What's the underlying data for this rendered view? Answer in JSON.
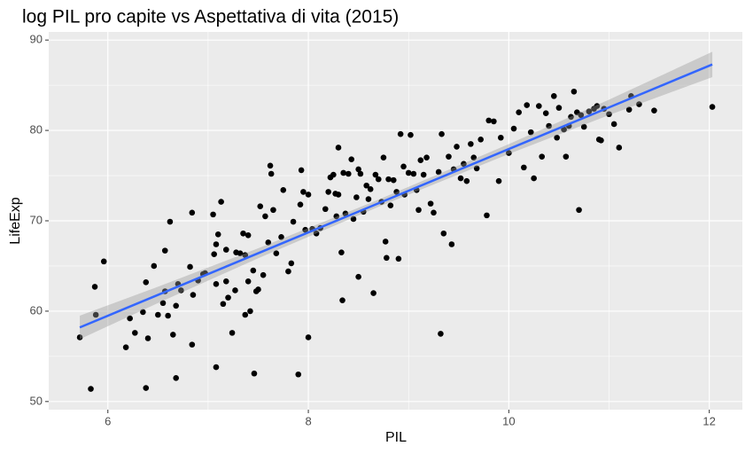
{
  "chart_data": {
    "type": "scatter",
    "title": "log PIL pro capite vs Aspettativa di vita (2015)",
    "x_label": "PIL",
    "y_label": "LifeExp",
    "xlim": [
      5.41,
      12.33
    ],
    "ylim": [
      49.1,
      90.9
    ],
    "xticks": [
      6,
      8,
      10,
      12
    ],
    "yticks": [
      50,
      60,
      70,
      80,
      90
    ],
    "grid": true,
    "points": {
      "color": "#000000",
      "x": [
        5.72,
        5.83,
        5.87,
        5.88,
        5.96,
        6.18,
        6.22,
        6.27,
        6.35,
        6.38,
        6.38,
        6.4,
        6.46,
        6.5,
        6.55,
        6.57,
        6.57,
        6.6,
        6.62,
        6.65,
        6.68,
        6.68,
        6.7,
        6.73,
        6.82,
        6.84,
        6.84,
        6.85,
        6.9,
        6.95,
        6.97,
        7.05,
        7.06,
        7.08,
        7.08,
        7.08,
        7.1,
        7.13,
        7.15,
        7.18,
        7.18,
        7.2,
        7.24,
        7.27,
        7.28,
        7.32,
        7.35,
        7.37,
        7.37,
        7.4,
        7.4,
        7.42,
        7.45,
        7.46,
        7.48,
        7.5,
        7.52,
        7.55,
        7.57,
        7.6,
        7.62,
        7.63,
        7.65,
        7.68,
        7.73,
        7.75,
        7.8,
        7.83,
        7.85,
        7.9,
        7.92,
        7.93,
        7.95,
        7.97,
        8.0,
        8.0,
        8.04,
        8.08,
        8.12,
        8.17,
        8.2,
        8.22,
        8.25,
        8.27,
        8.28,
        8.3,
        8.3,
        8.33,
        8.34,
        8.35,
        8.37,
        8.4,
        8.43,
        8.45,
        8.48,
        8.5,
        8.5,
        8.52,
        8.55,
        8.58,
        8.6,
        8.62,
        8.65,
        8.67,
        8.7,
        8.73,
        8.75,
        8.77,
        8.78,
        8.8,
        8.82,
        8.85,
        8.88,
        8.9,
        8.92,
        8.95,
        8.96,
        9.0,
        9.02,
        9.05,
        9.08,
        9.1,
        9.12,
        9.15,
        9.18,
        9.22,
        9.25,
        9.3,
        9.32,
        9.33,
        9.35,
        9.4,
        9.43,
        9.45,
        9.48,
        9.52,
        9.55,
        9.58,
        9.62,
        9.65,
        9.68,
        9.72,
        9.78,
        9.8,
        9.85,
        9.9,
        9.92,
        10.0,
        10.05,
        10.1,
        10.15,
        10.18,
        10.22,
        10.25,
        10.3,
        10.33,
        10.37,
        10.4,
        10.45,
        10.48,
        10.5,
        10.55,
        10.57,
        10.6,
        10.62,
        10.65,
        10.68,
        10.7,
        10.72,
        10.75,
        10.8,
        10.85,
        10.88,
        10.9,
        10.92,
        10.95,
        11.0,
        11.05,
        11.1,
        11.2,
        11.22,
        11.3,
        11.45,
        12.03
      ],
      "y": [
        57.1,
        51.4,
        62.7,
        59.6,
        65.5,
        56.0,
        59.2,
        57.6,
        59.9,
        51.5,
        63.2,
        57.0,
        65.0,
        59.6,
        60.9,
        66.7,
        62.2,
        59.5,
        69.9,
        57.4,
        52.6,
        60.6,
        63.0,
        62.3,
        64.9,
        70.9,
        56.3,
        61.8,
        63.4,
        64.1,
        64.2,
        70.7,
        66.3,
        63.0,
        53.8,
        67.4,
        68.5,
        72.1,
        60.8,
        63.3,
        66.8,
        61.5,
        57.6,
        62.3,
        66.5,
        66.4,
        68.6,
        66.2,
        59.6,
        68.4,
        63.3,
        60.0,
        64.5,
        53.1,
        62.2,
        62.4,
        71.6,
        64.0,
        70.5,
        67.6,
        76.1,
        75.2,
        71.2,
        66.4,
        68.2,
        73.4,
        64.4,
        65.3,
        69.9,
        53.0,
        71.8,
        75.6,
        73.2,
        69.0,
        57.1,
        72.9,
        69.1,
        68.6,
        69.2,
        71.3,
        73.2,
        74.8,
        75.1,
        73.0,
        70.5,
        78.1,
        72.9,
        66.5,
        61.2,
        75.3,
        70.8,
        75.2,
        76.8,
        70.2,
        72.6,
        75.7,
        63.8,
        75.2,
        71.0,
        73.9,
        72.4,
        73.5,
        62.0,
        75.1,
        74.6,
        72.1,
        77.0,
        67.7,
        65.9,
        74.6,
        71.7,
        74.5,
        73.2,
        65.8,
        79.6,
        76.0,
        72.9,
        75.3,
        79.5,
        75.2,
        73.4,
        71.2,
        76.7,
        75.1,
        77.0,
        71.9,
        70.9,
        75.4,
        57.5,
        79.6,
        68.6,
        77.1,
        67.4,
        75.7,
        78.2,
        74.7,
        76.3,
        74.4,
        78.5,
        77.0,
        75.8,
        79.0,
        70.6,
        81.1,
        81.0,
        74.4,
        79.2,
        77.5,
        80.2,
        82.0,
        75.9,
        82.8,
        79.8,
        74.7,
        82.7,
        77.1,
        81.9,
        80.5,
        83.8,
        79.2,
        82.5,
        80.1,
        77.1,
        80.5,
        81.5,
        84.3,
        82.0,
        71.2,
        81.7,
        80.4,
        82.1,
        82.4,
        82.7,
        79.0,
        78.9,
        82.4,
        81.8,
        80.7,
        78.1,
        82.3,
        83.8,
        82.9,
        82.2,
        82.6
      ]
    },
    "fit": {
      "color": "#3366ff",
      "band_color": "#999999",
      "x": [
        5.72,
        6.5,
        7.5,
        8.7,
        10,
        11,
        12.03
      ],
      "y": [
        58.2,
        61.8,
        66.41,
        71.94,
        77.94,
        82.55,
        87.3
      ],
      "lower": [
        56.9,
        60.9,
        65.86,
        71.54,
        77.39,
        81.7,
        85.9
      ],
      "upper": [
        59.5,
        62.7,
        66.96,
        72.34,
        78.49,
        83.4,
        88.7
      ]
    }
  }
}
